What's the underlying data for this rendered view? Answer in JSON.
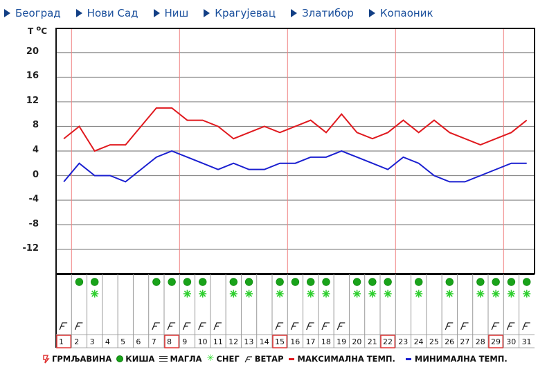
{
  "nav": {
    "items": [
      {
        "label": "Београд"
      },
      {
        "label": "Нови Сад"
      },
      {
        "label": "Ниш"
      },
      {
        "label": "Крагујевац"
      },
      {
        "label": "Златибор"
      },
      {
        "label": "Копаоник"
      }
    ]
  },
  "colors": {
    "nav_link": "#1a4f9c",
    "max_line": "#e0191e",
    "min_line": "#1a1fd0",
    "grid": "#888888",
    "week_marker": "#f08080",
    "rain": "#19a31a",
    "snow": "#2fdc2f",
    "highlight_box": "#e03535"
  },
  "chart_data": {
    "type": "line",
    "title": "",
    "ylabel": "T °C",
    "xlabel": "",
    "ylim": [
      -16,
      24
    ],
    "yticks": [
      20,
      16,
      12,
      8,
      4,
      0,
      -4,
      -8,
      -12
    ],
    "grid": true,
    "x": [
      1,
      2,
      3,
      4,
      5,
      6,
      7,
      8,
      9,
      10,
      11,
      12,
      13,
      14,
      15,
      16,
      17,
      18,
      19,
      20,
      21,
      22,
      23,
      24,
      25,
      26,
      27,
      28,
      29,
      30,
      31
    ],
    "series": [
      {
        "name": "МАКСИМАЛНА ТЕМП.",
        "color": "#e0191e",
        "values": [
          6,
          8,
          4,
          5,
          5,
          8,
          11,
          11,
          9,
          9,
          8,
          6,
          7,
          8,
          7,
          8,
          9,
          7,
          10,
          7,
          6,
          7,
          9,
          7,
          9,
          7,
          6,
          5,
          6,
          7,
          9
        ]
      },
      {
        "name": "МИНИМАЛНА ТЕМП.",
        "color": "#1a1fd0",
        "values": [
          -1,
          2,
          0,
          0,
          -1,
          1,
          3,
          4,
          3,
          2,
          1,
          2,
          1,
          1,
          2,
          2,
          3,
          3,
          4,
          3,
          2,
          1,
          3,
          2,
          0,
          -1,
          -1,
          0,
          1,
          2,
          2
        ]
      }
    ],
    "week_markers_after_days": [
      1,
      8,
      15,
      22,
      29
    ],
    "highlighted_days": [
      1,
      8,
      15,
      22,
      29
    ],
    "weather": {
      "rain": [
        2,
        3,
        7,
        8,
        9,
        10,
        12,
        13,
        15,
        16,
        17,
        18,
        20,
        21,
        22,
        24,
        26,
        28,
        29,
        30,
        31
      ],
      "snow": [
        3,
        9,
        10,
        12,
        13,
        15,
        17,
        18,
        20,
        21,
        22,
        24,
        26,
        28,
        29,
        30,
        31
      ],
      "wind": [
        1,
        2,
        7,
        8,
        9,
        10,
        11,
        15,
        16,
        17,
        18,
        19,
        26,
        27,
        29,
        30,
        31
      ]
    },
    "legend": [
      {
        "key": "thunder",
        "label": "ГРМЉАВИНА"
      },
      {
        "key": "rain",
        "label": "КИША"
      },
      {
        "key": "fog",
        "label": "МАГЛА"
      },
      {
        "key": "snow",
        "label": "СНЕГ"
      },
      {
        "key": "wind",
        "label": "ВЕТАР"
      },
      {
        "key": "max",
        "label": "МАКСИМАЛНА ТЕМП."
      },
      {
        "key": "min",
        "label": "МИНИМАЛНА ТЕМП."
      }
    ],
    "legend_position": "bottom"
  },
  "axis": {
    "unit_label_t": "T",
    "unit_label_o": "o",
    "unit_label_c": "C"
  }
}
